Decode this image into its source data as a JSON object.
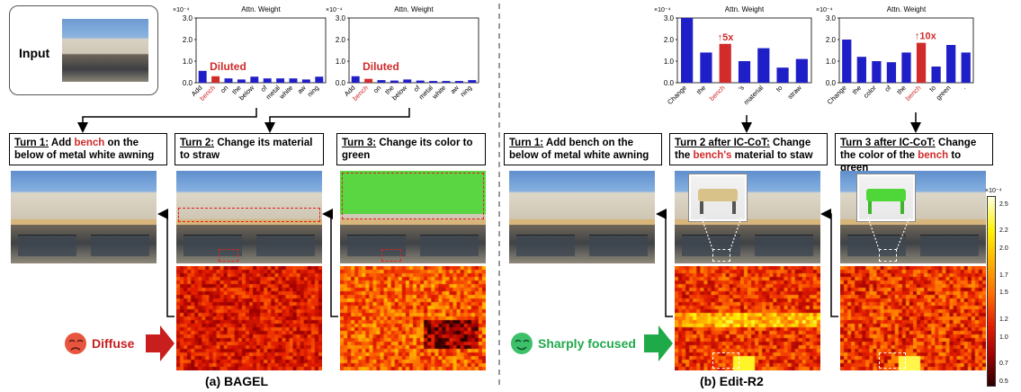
{
  "input": {
    "label": "Input"
  },
  "panel_a": {
    "caption": "(a) BAGEL",
    "tag": "Diffuse",
    "turns": [
      {
        "prefix": "Turn 1:",
        "pre": " Add ",
        "highlight": "bench",
        "post": " on the below of metal white awning"
      },
      {
        "prefix": "Turn 2:",
        "pre": " Change its material to straw",
        "highlight": "",
        "post": ""
      },
      {
        "prefix": "Turn 3:",
        "pre": " Change its color to green",
        "highlight": "",
        "post": ""
      }
    ]
  },
  "panel_b": {
    "caption": "(b) Edit-R2",
    "tag": "Sharply focused",
    "turns": [
      {
        "prefix": "Turn 1:",
        "pre": " Add bench on the below of metal white awning",
        "highlight": "",
        "post": ""
      },
      {
        "prefix": "Turn 2 after IC-CoT:",
        "pre": " Change the ",
        "highlight": "bench's",
        "post": " material to staw"
      },
      {
        "prefix": "Turn 3 after IC-CoT:",
        "pre": " Change the color of the ",
        "highlight": "bench",
        "post": " to green"
      }
    ]
  },
  "colorbar": {
    "exponent": "×10⁻⁴",
    "ticks": [
      "2.5",
      "2.2",
      "2.0",
      "1.7",
      "1.5",
      "1.2",
      "1.0",
      "0.7",
      "0.5"
    ],
    "values": [
      2.5,
      2.2,
      2.0,
      1.7,
      1.5,
      1.2,
      1.0,
      0.7,
      0.5
    ]
  },
  "colors": {
    "highlight": "#d12b2b",
    "bar": "#1f1fc8",
    "positive_arrow": "#1faa4a",
    "negative_arrow": "#c81e1e"
  },
  "chart_data": [
    {
      "type": "bar",
      "title": "Attn. Weight",
      "exponent": "×10⁻⁴",
      "categories": [
        "Add",
        "bench",
        "on",
        "the",
        "below",
        "of",
        "metal",
        "white",
        "aw",
        "ning"
      ],
      "values": [
        0.55,
        0.3,
        0.2,
        0.15,
        0.28,
        0.2,
        0.2,
        0.2,
        0.15,
        0.28
      ],
      "highlight_index": 1,
      "annotation": "Diluted",
      "ylim": [
        0,
        3.0
      ],
      "yticks": [
        "0.0",
        "1.0",
        "2.0",
        "3.0"
      ]
    },
    {
      "type": "bar",
      "title": "Attn. Weight",
      "exponent": "×10⁻⁴",
      "categories": [
        "Add",
        "bench",
        "on",
        "the",
        "below",
        "of",
        "metal",
        "white",
        "aw",
        "ning"
      ],
      "values": [
        0.3,
        0.18,
        0.12,
        0.1,
        0.15,
        0.1,
        0.08,
        0.08,
        0.08,
        0.12
      ],
      "highlight_index": 1,
      "annotation": "Diluted",
      "ylim": [
        0,
        3.0
      ],
      "yticks": [
        "0.0",
        "1.0",
        "2.0",
        "3.0"
      ]
    },
    {
      "type": "bar",
      "title": "Attn. Weight",
      "exponent": "×10⁻⁴",
      "categories": [
        "Change",
        "the",
        "bench",
        "'s",
        "material",
        "to",
        "straw"
      ],
      "values": [
        3.0,
        1.4,
        1.8,
        1.0,
        1.6,
        0.7,
        1.1
      ],
      "highlight_index": 2,
      "annotation": "↑5x",
      "ylim": [
        0,
        3.0
      ],
      "yticks": [
        "0.0",
        "1.0",
        "2.0",
        "3.0"
      ]
    },
    {
      "type": "bar",
      "title": "Attn. Weight",
      "exponent": "×10⁻⁴",
      "categories": [
        "Change",
        "the",
        "color",
        "of",
        "the",
        "bench",
        "to",
        "green",
        "."
      ],
      "values": [
        2.0,
        1.2,
        1.0,
        0.95,
        1.4,
        1.85,
        0.75,
        1.75,
        1.4
      ],
      "highlight_index": 5,
      "annotation": "↑10x",
      "ylim": [
        0,
        3.0
      ],
      "yticks": [
        "0.0",
        "1.0",
        "2.0",
        "3.0"
      ]
    }
  ]
}
